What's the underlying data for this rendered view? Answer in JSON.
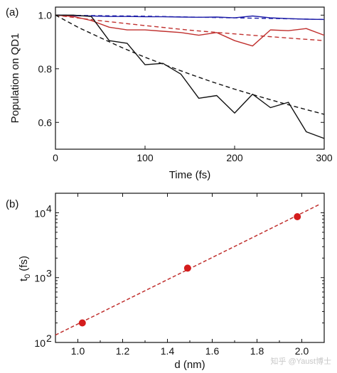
{
  "chart_data": [
    {
      "panel_label": "(a)",
      "type": "line",
      "xlabel": "Time (fs)",
      "ylabel": "Population on QD1",
      "xlim": [
        0,
        300
      ],
      "ylim": [
        0.5,
        1.03
      ],
      "x_ticks": [
        0,
        100,
        200,
        300
      ],
      "y_ticks": [
        0.6,
        0.8,
        1.0
      ],
      "y_tick_labels": [
        "0.6",
        "0.8",
        "1.0"
      ],
      "grid": false,
      "series": [
        {
          "color": "#1f1fa8",
          "style": "solid",
          "x": [
            0,
            20,
            40,
            60,
            80,
            100,
            120,
            140,
            160,
            180,
            200,
            220,
            240,
            260,
            280,
            300
          ],
          "y": [
            1.0,
            0.998,
            0.997,
            0.995,
            0.995,
            0.994,
            0.994,
            0.993,
            0.992,
            0.993,
            0.99,
            0.997,
            0.99,
            0.987,
            0.985,
            0.984
          ]
        },
        {
          "color": "#1f1fa8",
          "style": "dashed",
          "x": [
            0,
            50,
            100,
            150,
            200,
            250,
            300
          ],
          "y": [
            1.0,
            0.998,
            0.996,
            0.993,
            0.99,
            0.987,
            0.984
          ]
        },
        {
          "color": "#c0302e",
          "style": "solid",
          "x": [
            0,
            20,
            40,
            60,
            80,
            100,
            120,
            140,
            160,
            180,
            200,
            220,
            240,
            260,
            280,
            300
          ],
          "y": [
            1.0,
            0.995,
            0.98,
            0.955,
            0.945,
            0.945,
            0.94,
            0.935,
            0.925,
            0.935,
            0.905,
            0.885,
            0.945,
            0.942,
            0.95,
            0.925
          ]
        },
        {
          "color": "#c0302e",
          "style": "dashed",
          "x": [
            0,
            50,
            100,
            150,
            200,
            250,
            300
          ],
          "y": [
            1.0,
            0.979,
            0.961,
            0.944,
            0.93,
            0.917,
            0.905
          ]
        },
        {
          "color": "#111111",
          "style": "solid",
          "x": [
            0,
            20,
            40,
            60,
            80,
            100,
            120,
            140,
            160,
            180,
            200,
            220,
            240,
            260,
            280,
            300
          ],
          "y": [
            1.0,
            1.0,
            0.995,
            0.905,
            0.895,
            0.815,
            0.82,
            0.78,
            0.69,
            0.7,
            0.635,
            0.705,
            0.655,
            0.675,
            0.565,
            0.54
          ]
        },
        {
          "color": "#111111",
          "style": "dashed",
          "x": [
            0,
            25,
            50,
            75,
            100,
            125,
            150,
            175,
            200,
            225,
            250,
            275,
            300
          ],
          "y": [
            1.0,
            0.955,
            0.916,
            0.878,
            0.843,
            0.811,
            0.78,
            0.751,
            0.724,
            0.699,
            0.675,
            0.652,
            0.63
          ]
        }
      ]
    },
    {
      "panel_label": "(b)",
      "type": "scatter",
      "xlabel": "d (nm)",
      "ylabel": "t",
      "ylabel_subscript": "0",
      "ylabel_suffix": "(fs)",
      "xlim": [
        0.9,
        2.1
      ],
      "ylim": [
        100,
        20000
      ],
      "y_scale": "log",
      "x_ticks": [
        1.0,
        1.2,
        1.4,
        1.6,
        1.8,
        2.0
      ],
      "x_tick_labels": [
        "1.0",
        "1.2",
        "1.4",
        "1.6",
        "1.8",
        "2.0"
      ],
      "y_ticks": [
        100,
        1000,
        10000
      ],
      "y_tick_bases": [
        "10",
        "10",
        "10"
      ],
      "y_tick_exps": [
        "2",
        "3",
        "4"
      ],
      "grid": false,
      "points": {
        "color": "#d41c1c",
        "x": [
          1.02,
          1.49,
          1.98
        ],
        "y": [
          200,
          1400,
          8700
        ]
      },
      "fit_line": {
        "color": "#c0302e",
        "style": "dashed",
        "x": [
          0.9,
          2.08
        ],
        "y": [
          130,
          13500
        ]
      }
    }
  ],
  "watermark": "知乎 @Yaust博士"
}
